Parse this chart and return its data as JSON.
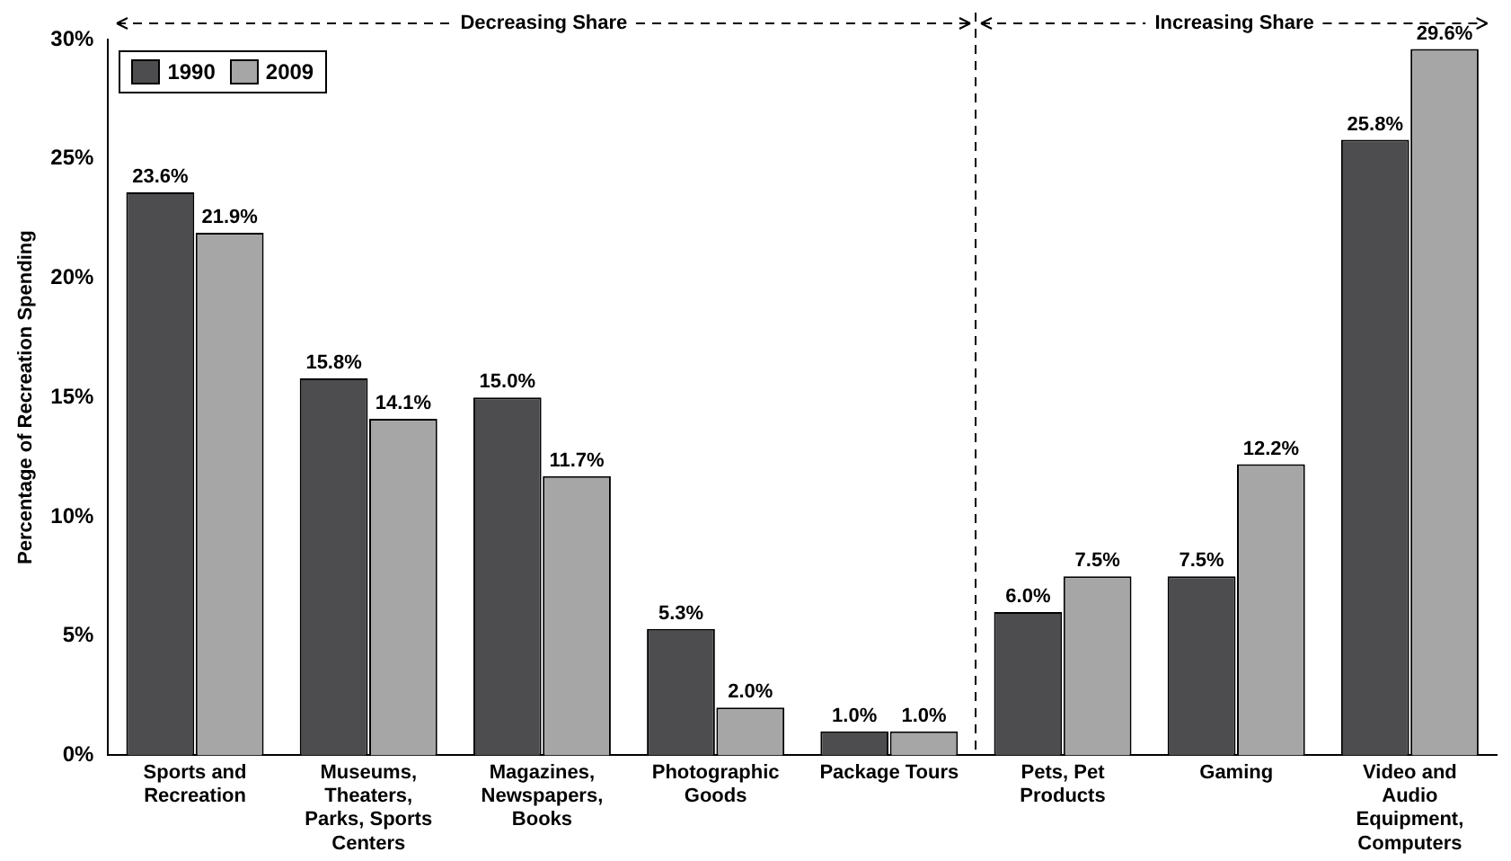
{
  "chart_data": {
    "type": "bar",
    "ylabel": "Percentage of Recreation Spending",
    "categories": [
      "Sports and Recreation",
      "Museums, Theaters, Parks, Sports Centers",
      "Magazines, Newspapers, Books",
      "Photographic Goods",
      "Package Tours",
      "Pets, Pet Products",
      "Gaming",
      "Video and Audio Equipment, Computers"
    ],
    "series": [
      {
        "name": "1990",
        "color": "#4d4d4f",
        "values": [
          23.6,
          15.8,
          15.0,
          5.3,
          1.0,
          6.0,
          7.5,
          25.8
        ],
        "value_labels": [
          "23.6%",
          "15.8%",
          "15.0%",
          "5.3%",
          "1.0%",
          "6.0%",
          "7.5%",
          "25.8%"
        ]
      },
      {
        "name": "2009",
        "color": "#a6a6a6",
        "values": [
          21.9,
          14.1,
          11.7,
          2.0,
          1.0,
          7.5,
          12.2,
          29.6
        ],
        "value_labels": [
          "21.9%",
          "14.1%",
          "11.7%",
          "2.0%",
          "1.0%",
          "7.5%",
          "12.2%",
          "29.6%"
        ]
      }
    ],
    "ylim": [
      0,
      30
    ],
    "yticks": [
      {
        "value": 0,
        "label": "0%"
      },
      {
        "value": 5,
        "label": "5%"
      },
      {
        "value": 10,
        "label": "10%"
      },
      {
        "value": 15,
        "label": "15%"
      },
      {
        "value": 20,
        "label": "20%"
      },
      {
        "value": 25,
        "label": "25%"
      },
      {
        "value": 30,
        "label": "30%"
      }
    ],
    "annotations": [
      "Decreasing Share",
      "Increasing Share"
    ],
    "grid": false,
    "legend": "top left"
  }
}
